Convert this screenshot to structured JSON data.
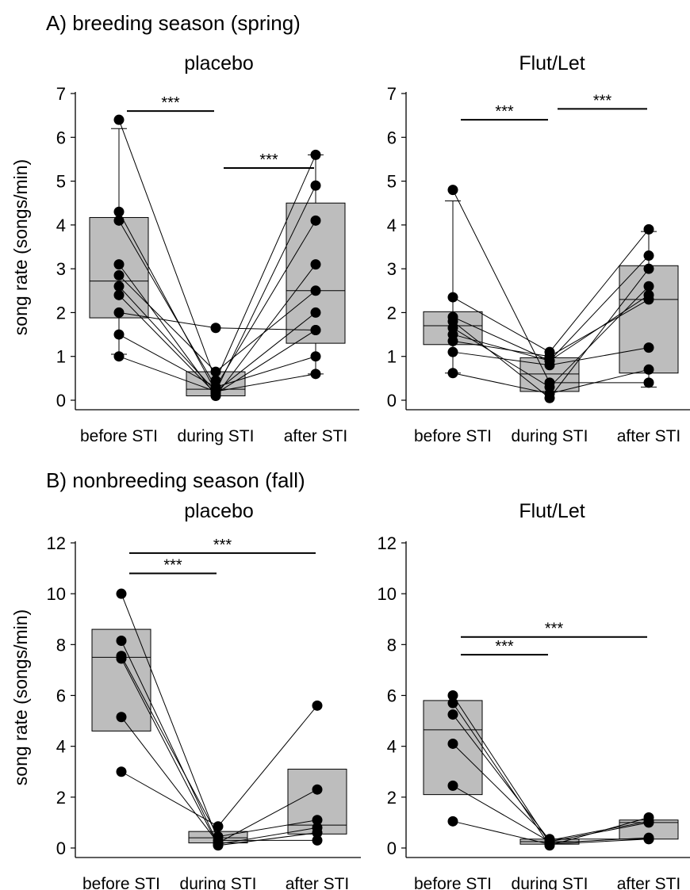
{
  "sections": [
    {
      "title": "A) breeding season (spring)"
    },
    {
      "title": "B) nonbreeding season (fall)"
    }
  ],
  "ylabel": "song rate (songs/min)",
  "categories": [
    "before STI",
    "during STI",
    "after STI"
  ],
  "colors": {
    "box_fill": "#bdbdbd",
    "axis": "#000000",
    "points": "#000000"
  },
  "chart_data": [
    {
      "type": "box",
      "title": "placebo",
      "ylim": [
        0,
        7
      ],
      "yticks": [
        "0",
        "1",
        "2",
        "3",
        "4",
        "5",
        "6",
        "7"
      ],
      "categories": [
        "before STI",
        "during STI",
        "after STI"
      ],
      "boxes": [
        {
          "q1": 1.88,
          "median": 2.72,
          "q3": 4.17,
          "whisker_low": 1.05,
          "whisker_high": 6.2
        },
        {
          "q1": 0.1,
          "median": 0.25,
          "q3": 0.65
        },
        {
          "q1": 1.3,
          "median": 2.5,
          "q3": 4.5,
          "whisker_low": 0.6,
          "whisker_high": 5.6
        }
      ],
      "subjects": [
        [
          6.4,
          0.45,
          5.6
        ],
        [
          4.3,
          0.2,
          4.9
        ],
        [
          4.1,
          0.3,
          4.1
        ],
        [
          3.1,
          0.1,
          3.1
        ],
        [
          2.85,
          0.65,
          2.5
        ],
        [
          2.6,
          0.2,
          2.0
        ],
        [
          2.4,
          0.15,
          1.6
        ],
        [
          2.0,
          1.65,
          1.6
        ],
        [
          1.5,
          0.3,
          1.0
        ],
        [
          1.0,
          0.2,
          0.6
        ]
      ],
      "significance": [
        {
          "from": 0,
          "to": 1,
          "y": 6.6,
          "label": "***"
        },
        {
          "from": 1,
          "to": 2,
          "y": 5.3,
          "label": "***"
        }
      ]
    },
    {
      "type": "box",
      "title": "Flut/Let",
      "ylim": [
        0,
        7
      ],
      "yticks": [
        "0",
        "1",
        "2",
        "3",
        "4",
        "5",
        "6",
        "7"
      ],
      "categories": [
        "before STI",
        "during STI",
        "after STI"
      ],
      "boxes": [
        {
          "q1": 1.27,
          "median": 1.7,
          "q3": 2.02,
          "whisker_low": 0.62,
          "whisker_high": 4.55
        },
        {
          "q1": 0.2,
          "median": 0.6,
          "q3": 0.97
        },
        {
          "q1": 0.62,
          "median": 2.3,
          "q3": 3.07,
          "whisker_low": 0.3,
          "whisker_high": 3.85
        }
      ],
      "subjects": [
        [
          4.8,
          0.4,
          0.4
        ],
        [
          2.35,
          1.1,
          3.9
        ],
        [
          1.9,
          0.9,
          3.3
        ],
        [
          1.8,
          0.05,
          3.0
        ],
        [
          1.65,
          0.3,
          2.6
        ],
        [
          1.5,
          0.9,
          2.4
        ],
        [
          1.35,
          1.0,
          2.3
        ],
        [
          1.1,
          0.8,
          1.2
        ],
        [
          0.62,
          0.15,
          0.7
        ]
      ],
      "significance": [
        {
          "from": 0,
          "to": 1,
          "y": 6.4,
          "label": "***"
        },
        {
          "from": 1,
          "to": 2,
          "y": 6.65,
          "label": "***"
        }
      ]
    },
    {
      "type": "box",
      "title": "placebo",
      "ylim": [
        0,
        12
      ],
      "yticks": [
        "0",
        "2",
        "4",
        "6",
        "8",
        "10",
        "12"
      ],
      "categories": [
        "before STI",
        "during STI",
        "after STI"
      ],
      "boxes": [
        {
          "q1": 4.6,
          "median": 7.5,
          "q3": 8.6
        },
        {
          "q1": 0.2,
          "median": 0.4,
          "q3": 0.65
        },
        {
          "q1": 0.55,
          "median": 0.9,
          "q3": 3.1
        }
      ],
      "subjects": [
        [
          10.0,
          0.3,
          0.3
        ],
        [
          8.15,
          0.15,
          0.8
        ],
        [
          7.55,
          0.45,
          1.1
        ],
        [
          7.45,
          0.1,
          0.6
        ],
        [
          5.15,
          0.2,
          2.3
        ],
        [
          3.0,
          0.85,
          5.6
        ]
      ],
      "significance": [
        {
          "from": 0,
          "to": 1,
          "y": 10.8,
          "label": "***"
        },
        {
          "from": 0,
          "to": 2,
          "y": 11.6,
          "label": "***"
        }
      ]
    },
    {
      "type": "box",
      "title": "Flut/Let",
      "ylim": [
        0,
        12
      ],
      "yticks": [
        "0",
        "2",
        "4",
        "6",
        "8",
        "10",
        "12"
      ],
      "categories": [
        "before STI",
        "during STI",
        "after STI"
      ],
      "boxes": [
        {
          "q1": 2.1,
          "median": 4.65,
          "q3": 5.8
        },
        {
          "q1": 0.15,
          "median": 0.25,
          "q3": 0.35
        },
        {
          "q1": 0.35,
          "median": 1.0,
          "q3": 1.1
        }
      ],
      "subjects": [
        [
          6.0,
          0.2,
          0.4
        ],
        [
          5.7,
          0.1,
          1.2
        ],
        [
          5.25,
          0.3,
          1.05
        ],
        [
          4.1,
          0.35,
          0.35
        ],
        [
          2.45,
          0.25,
          1.0
        ],
        [
          1.05,
          0.15,
          0.35
        ]
      ],
      "significance": [
        {
          "from": 0,
          "to": 1,
          "y": 7.6,
          "label": "***"
        },
        {
          "from": 0,
          "to": 2,
          "y": 8.3,
          "label": "***"
        }
      ]
    }
  ]
}
